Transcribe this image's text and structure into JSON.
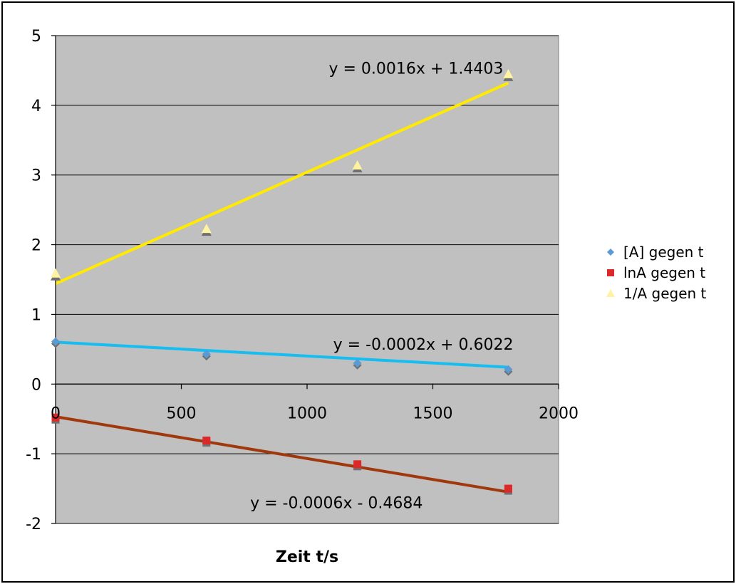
{
  "chart_data": {
    "type": "scatter",
    "title": "",
    "xlabel": "Zeit t/s",
    "ylabel": "",
    "xlim": [
      0,
      2000
    ],
    "ylim": [
      -2,
      5
    ],
    "x_ticks": [
      0,
      500,
      1000,
      1500,
      2000
    ],
    "y_ticks": [
      -2,
      -1,
      0,
      1,
      2,
      3,
      4,
      5
    ],
    "x_tick_labels": [
      "0",
      "500",
      "1000",
      "1500",
      "2000"
    ],
    "y_tick_labels": [
      "-2",
      "-1",
      "0",
      "1",
      "2",
      "3",
      "4",
      "5"
    ],
    "grid": "horizontal major gridlines",
    "plot_background": "#c0c0c0",
    "legend_position": "right",
    "series": [
      {
        "name": "[A] gegen t",
        "marker": "diamond",
        "color": "#5b9bd5",
        "x": [
          0,
          600,
          1200,
          1800
        ],
        "y": [
          0.61,
          0.43,
          0.3,
          0.21
        ],
        "trendline": {
          "slope": -0.0002,
          "intercept": 0.6022,
          "color": "#16bdf0",
          "label": "y = -0.0002x + 0.6022"
        }
      },
      {
        "name": "lnA gegen t",
        "marker": "square",
        "color": "#dc2828",
        "x": [
          0,
          600,
          1200,
          1800
        ],
        "y": [
          -0.48,
          -0.81,
          -1.15,
          -1.5
        ],
        "trendline": {
          "slope": -0.0006,
          "intercept": -0.4684,
          "color": "#a0380c",
          "label": "y = -0.0006x - 0.4684"
        }
      },
      {
        "name": "1/A gegen t",
        "marker": "triangle",
        "color": "#fff2a0",
        "x": [
          0,
          600,
          1200,
          1800
        ],
        "y": [
          1.59,
          2.23,
          3.14,
          4.45
        ],
        "trendline": {
          "slope": 0.0016,
          "intercept": 1.4403,
          "color": "#ffea00",
          "label": "y = 0.0016x + 1.4403"
        }
      }
    ]
  }
}
